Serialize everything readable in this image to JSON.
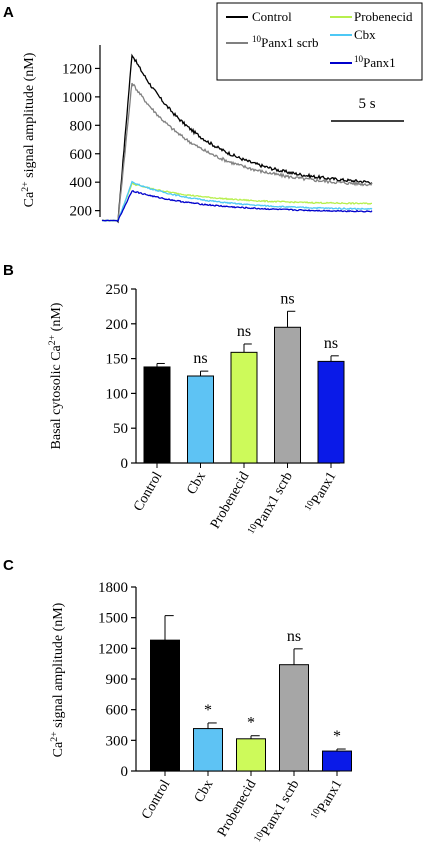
{
  "panels": {
    "a": "A",
    "b": "B",
    "c": "C"
  },
  "chart_data": [
    {
      "type": "line",
      "panel": "A",
      "ylabel_pre": "Ca",
      "ylabel_sup": "2+",
      "ylabel_post": " signal amplitude (nM)",
      "yticks": [
        200,
        400,
        600,
        800,
        1000,
        1200
      ],
      "ylim": [
        120,
        1400
      ],
      "scalebar_label": "5 s",
      "legend": [
        {
          "pre": "",
          "sup": "",
          "post": "Control",
          "color": "#000000"
        },
        {
          "pre": "",
          "sup": "10",
          "post": "Panx1 scrb",
          "color": "#808080"
        },
        {
          "pre": "",
          "sup": "",
          "post": "Probenecid",
          "color": "#b7ef4d"
        },
        {
          "pre": "",
          "sup": "",
          "post": "Cbx",
          "color": "#4dc8f5"
        },
        {
          "pre": "",
          "sup": "10",
          "post": "Panx1",
          "color": "#0000cc"
        }
      ],
      "series": [
        {
          "key": "Control",
          "color": "#000000",
          "baseline": 130,
          "peak": 1300,
          "end": 370
        },
        {
          "key": "10Panx1 scrb",
          "color": "#808080",
          "baseline": 130,
          "peak": 1100,
          "end": 360
        },
        {
          "key": "Probenecid",
          "color": "#b7ef4d",
          "baseline": 130,
          "peak": 390,
          "end": 245
        },
        {
          "key": "Cbx",
          "color": "#4dc8f5",
          "baseline": 130,
          "peak": 400,
          "end": 205
        },
        {
          "key": "10Panx1",
          "color": "#0000cc",
          "baseline": 130,
          "peak": 340,
          "end": 190
        }
      ]
    },
    {
      "type": "bar",
      "panel": "B",
      "ylabel_pre": "Basal cytosolic Ca",
      "ylabel_sup": "2+",
      "ylabel_post": " (nM)",
      "ylim": [
        0,
        250
      ],
      "yticks": [
        0,
        50,
        100,
        150,
        200,
        250
      ],
      "categories": [
        {
          "pre": "",
          "sup": "",
          "post": "Control"
        },
        {
          "pre": "",
          "sup": "",
          "post": "Cbx"
        },
        {
          "pre": "",
          "sup": "",
          "post": "Probenecid"
        },
        {
          "pre": "",
          "sup": "10",
          "post": "Panx1 scrb"
        },
        {
          "pre": "",
          "sup": "10",
          "post": "Panx1"
        }
      ],
      "values": [
        138,
        125,
        159,
        195,
        146
      ],
      "errors": [
        5,
        7,
        12,
        23,
        8
      ],
      "colors": [
        "#000000",
        "#5ec3f4",
        "#cdfa5a",
        "#a6a6a6",
        "#0a1ae8"
      ],
      "significance": [
        "",
        "ns",
        "ns",
        "ns",
        "ns"
      ]
    },
    {
      "type": "bar",
      "panel": "C",
      "ylabel_pre": "Ca",
      "ylabel_sup": "2+",
      "ylabel_post": " signal amplitude (nM)",
      "ylim": [
        0,
        1800
      ],
      "yticks": [
        0,
        300,
        600,
        900,
        1200,
        1500,
        1800
      ],
      "categories": [
        {
          "pre": "",
          "sup": "",
          "post": "Control"
        },
        {
          "pre": "",
          "sup": "",
          "post": "Cbx"
        },
        {
          "pre": "",
          "sup": "",
          "post": "Probenecid"
        },
        {
          "pre": "",
          "sup": "10",
          "post": "Panx1 scrb"
        },
        {
          "pre": "",
          "sup": "10",
          "post": "Panx1"
        }
      ],
      "values": [
        1280,
        415,
        315,
        1040,
        195
      ],
      "errors": [
        240,
        55,
        30,
        155,
        20
      ],
      "colors": [
        "#000000",
        "#5ec3f4",
        "#cdfa5a",
        "#a6a6a6",
        "#0a1ae8"
      ],
      "significance": [
        "",
        "*",
        "*",
        "ns",
        "*"
      ]
    }
  ]
}
